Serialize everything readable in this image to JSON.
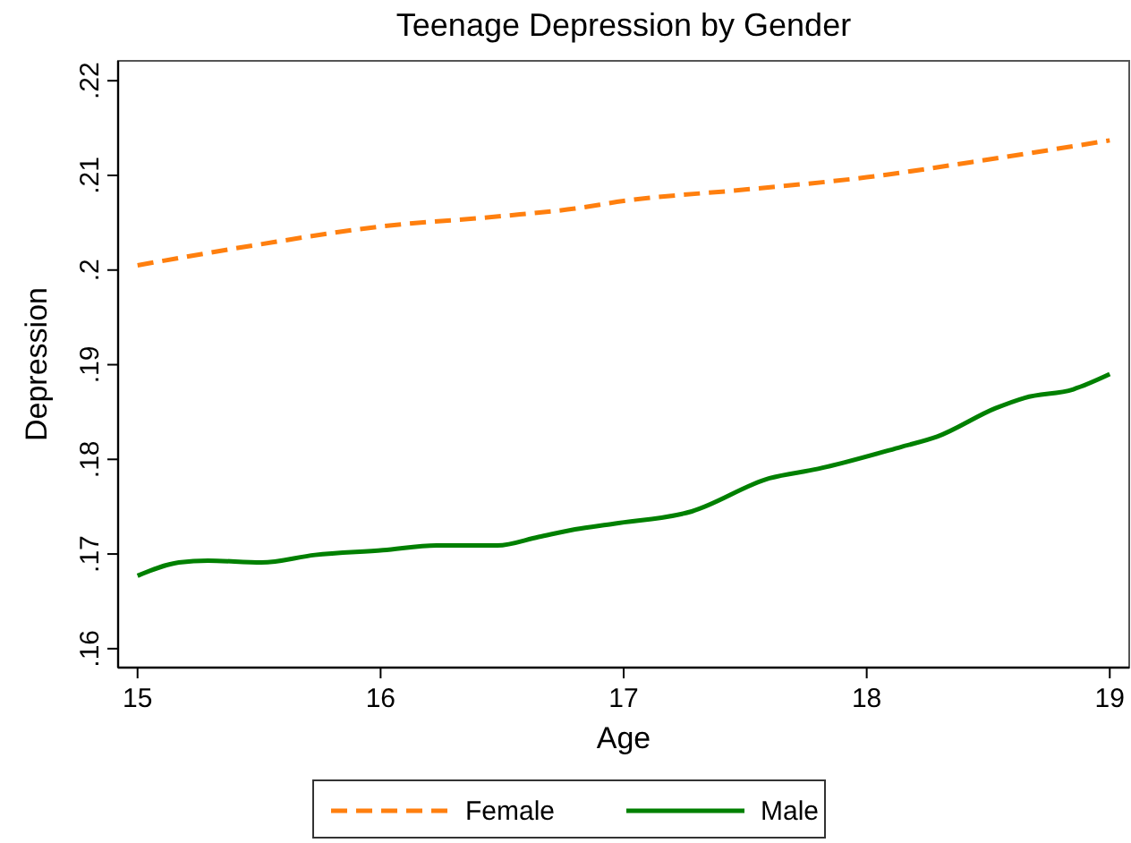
{
  "chart_data": {
    "type": "line",
    "title": "Teenage Depression by Gender",
    "xlabel": "Age",
    "ylabel": "Depression",
    "xlim": [
      14.92,
      19.08
    ],
    "xticks": [
      15,
      16,
      17,
      18,
      19
    ],
    "ylim": [
      0.158,
      0.2221
    ],
    "yticks": [
      {
        "value": 0.16,
        "label": ".16"
      },
      {
        "value": 0.17,
        "label": ".17"
      },
      {
        "value": 0.18,
        "label": ".18"
      },
      {
        "value": 0.19,
        "label": ".19"
      },
      {
        "value": 0.2,
        "label": ".2"
      },
      {
        "value": 0.21,
        "label": ".21"
      },
      {
        "value": 0.22,
        "label": ".22"
      }
    ],
    "grid": false,
    "legend": "bottom",
    "series": [
      {
        "name": "Female",
        "color": "#ff7f0e",
        "line_style": "dashed",
        "x": [
          15,
          15.5,
          16,
          16.5,
          16.8,
          17,
          17.5,
          18,
          18.43,
          19
        ],
        "values": [
          0.2005,
          0.2027,
          0.2046,
          0.2057,
          0.2065,
          0.2073,
          0.2085,
          0.2098,
          0.2114,
          0.2137
        ]
      },
      {
        "name": "Male",
        "color": "#008000",
        "line_style": "solid",
        "x": [
          15,
          15.17,
          15.29,
          15.51,
          15.73,
          16.01,
          16.23,
          16.48,
          16.65,
          16.8,
          16.96,
          17.28,
          17.6,
          17.8,
          18.14,
          18.29,
          18.53,
          18.65,
          18.85,
          19
        ],
        "values": [
          0.1677,
          0.1691,
          0.1693,
          0.1691,
          0.1699,
          0.1704,
          0.1709,
          0.1709,
          0.1718,
          0.1726,
          0.1732,
          0.1745,
          0.178,
          0.179,
          0.1813,
          0.1824,
          0.1854,
          0.1865,
          0.1874,
          0.189
        ]
      }
    ]
  }
}
